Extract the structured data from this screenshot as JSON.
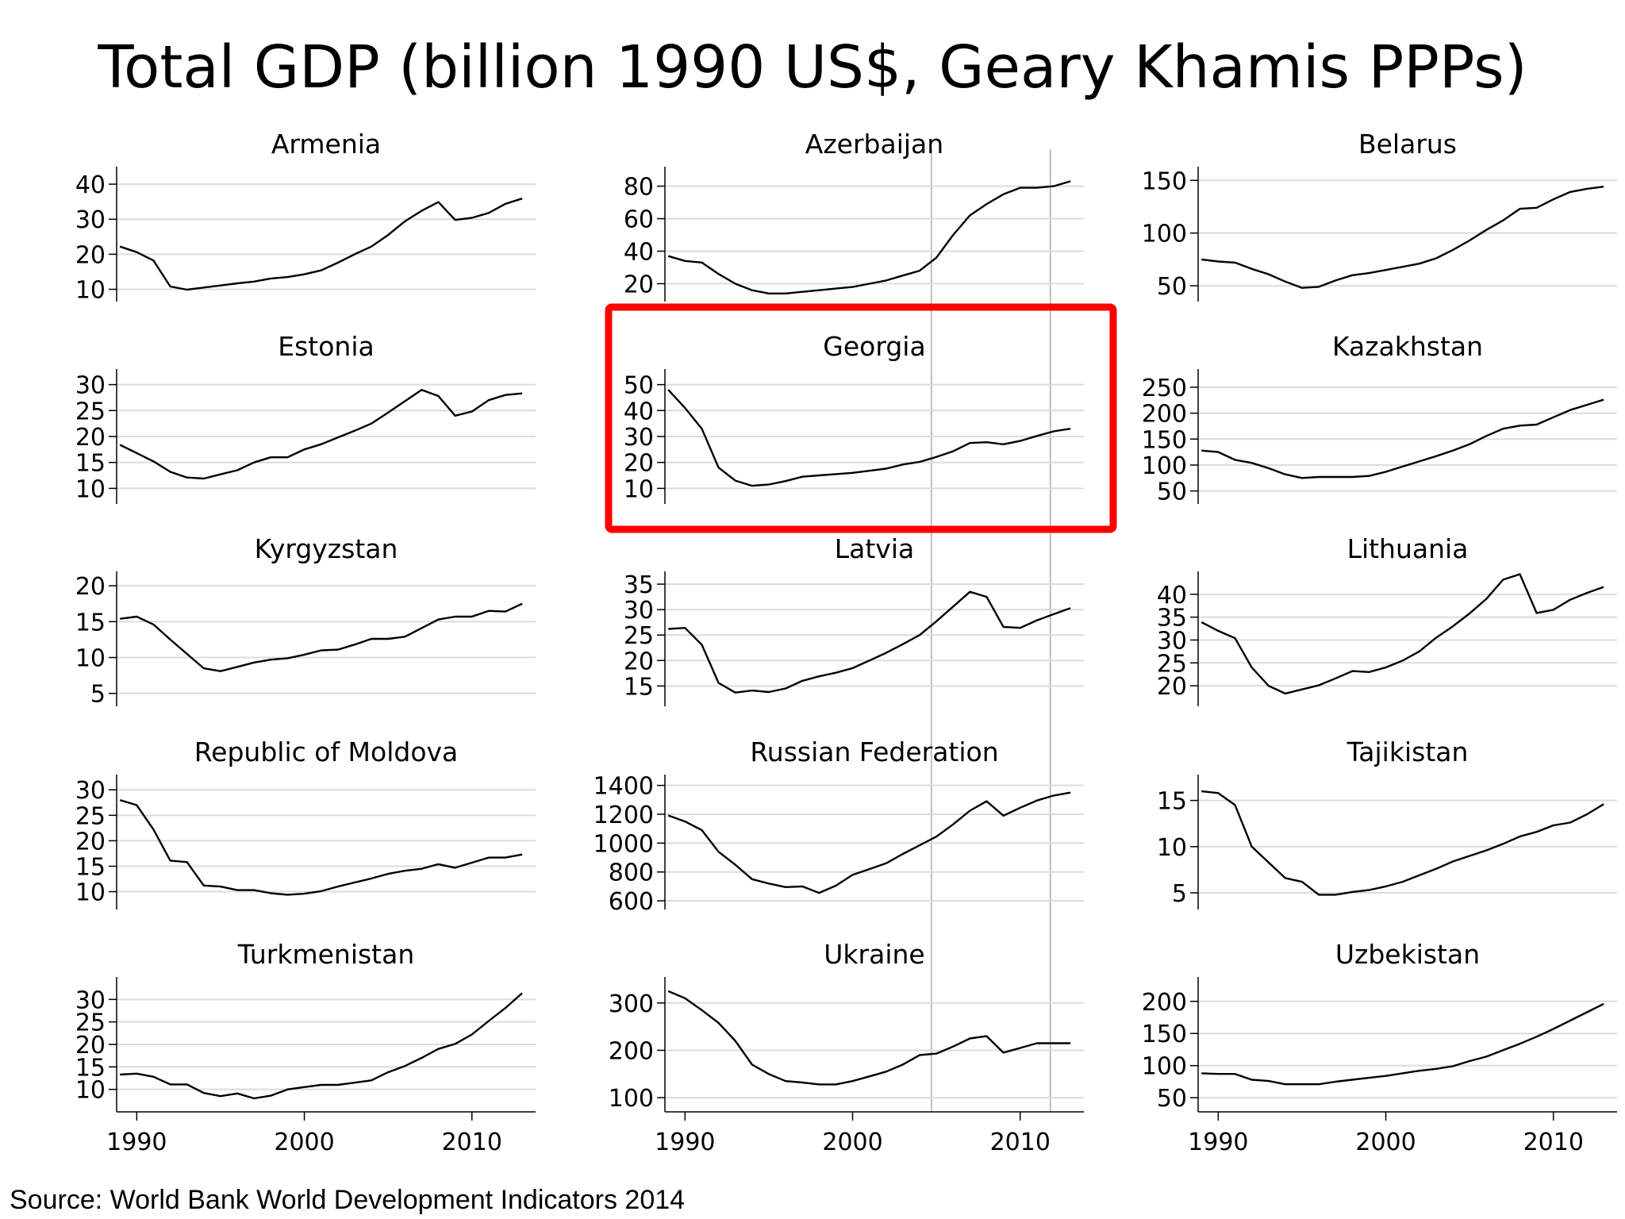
{
  "title": "Total GDP (billion 1990 US$, Geary Khamis PPPs)",
  "source": "Source: World Bank World Development Indicators 2014",
  "chart_data": {
    "type": "line",
    "x_axis": {
      "range": [
        1988.8,
        2013.8
      ],
      "ticks": [
        1990,
        2000,
        2010
      ]
    },
    "years": [
      1989,
      1990,
      1991,
      1992,
      1993,
      1994,
      1995,
      1996,
      1997,
      1998,
      1999,
      2000,
      2001,
      2002,
      2003,
      2004,
      2005,
      2006,
      2007,
      2008,
      2009,
      2010,
      2011,
      2012,
      2013
    ],
    "reference_lines_x": [
      2004.7,
      2011.8
    ],
    "highlighted_panel": "Georgia",
    "highlight_color": "#ff0000",
    "line_color": "#000000",
    "grid_color": "#dcdcdc",
    "panels": [
      {
        "name": "Armenia",
        "ylim": [
          6.5,
          45
        ],
        "yticks": [
          10,
          20,
          30,
          40
        ],
        "values": [
          22.2,
          20.6,
          18.2,
          10.8,
          9.9,
          10.5,
          11.1,
          11.7,
          12.2,
          13.1,
          13.5,
          14.3,
          15.4,
          17.6,
          20.0,
          22.2,
          25.5,
          29.4,
          32.4,
          34.9,
          29.8,
          30.4,
          31.8,
          34.4,
          35.9
        ]
      },
      {
        "name": "Azerbaijan",
        "ylim": [
          9,
          92
        ],
        "yticks": [
          20,
          40,
          60,
          80
        ],
        "values": [
          37,
          34,
          33,
          26,
          20,
          16,
          14,
          14,
          15,
          16,
          17,
          18,
          20,
          22,
          25,
          28,
          36,
          50,
          62,
          69,
          75,
          79,
          79,
          80,
          83
        ]
      },
      {
        "name": "Belarus",
        "ylim": [
          35,
          163
        ],
        "yticks": [
          50,
          100,
          150
        ],
        "values": [
          75,
          73,
          72,
          66,
          61,
          54,
          48,
          49,
          55,
          60,
          62,
          65,
          68,
          71,
          76,
          84,
          93,
          103,
          112,
          123,
          124,
          132,
          139,
          142,
          144
        ]
      },
      {
        "name": "Estonia",
        "ylim": [
          7,
          33
        ],
        "yticks": [
          10,
          15,
          20,
          25,
          30
        ],
        "values": [
          18.4,
          16.8,
          15.2,
          13.2,
          12.1,
          11.9,
          12.7,
          13.5,
          15.0,
          16.0,
          16.0,
          17.5,
          18.5,
          19.8,
          21.1,
          22.5,
          24.6,
          26.8,
          29.0,
          27.8,
          24.0,
          24.8,
          27.0,
          28.0,
          28.3
        ]
      },
      {
        "name": "Georgia",
        "ylim": [
          4,
          56
        ],
        "yticks": [
          10,
          20,
          30,
          40,
          50
        ],
        "values": [
          48,
          41,
          33,
          18,
          13,
          11,
          11.5,
          12.8,
          14.5,
          15,
          15.5,
          16,
          16.8,
          17.6,
          19.2,
          20.2,
          22.1,
          24.3,
          27.5,
          27.8,
          27,
          28.3,
          30.2,
          32,
          33
        ]
      },
      {
        "name": "Kazakhstan",
        "ylim": [
          25,
          285
        ],
        "yticks": [
          50,
          100,
          150,
          200,
          250
        ],
        "values": [
          128,
          125,
          110,
          104,
          94,
          82,
          75,
          77,
          77,
          77,
          79,
          87,
          97,
          107,
          117,
          128,
          140,
          156,
          170,
          176,
          178,
          192,
          206,
          216,
          226
        ]
      },
      {
        "name": "Kyrgyzstan",
        "ylim": [
          3.2,
          22
        ],
        "yticks": [
          5,
          10,
          15,
          20
        ],
        "values": [
          15.4,
          15.7,
          14.6,
          12.5,
          10.5,
          8.5,
          8.1,
          8.7,
          9.3,
          9.7,
          9.9,
          10.4,
          11.0,
          11.1,
          11.8,
          12.6,
          12.6,
          12.9,
          14.1,
          15.3,
          15.7,
          15.7,
          16.5,
          16.4,
          17.5
        ]
      },
      {
        "name": "Latvia",
        "ylim": [
          11,
          37.5
        ],
        "yticks": [
          15,
          20,
          25,
          30,
          35
        ],
        "values": [
          26.2,
          26.4,
          23.1,
          15.6,
          13.7,
          14.1,
          13.8,
          14.5,
          16.0,
          16.9,
          17.6,
          18.5,
          20.0,
          21.5,
          23.2,
          25.0,
          27.7,
          30.6,
          33.5,
          32.5,
          26.6,
          26.4,
          27.9,
          29.1,
          30.3
        ]
      },
      {
        "name": "Lithuania",
        "ylim": [
          15.5,
          45
        ],
        "yticks": [
          20,
          25,
          30,
          35,
          40
        ],
        "values": [
          33.9,
          32.0,
          30.4,
          24.0,
          20.0,
          18.3,
          19.2,
          20.1,
          21.6,
          23.2,
          23.0,
          24.0,
          25.5,
          27.5,
          30.5,
          33.0,
          35.8,
          39.0,
          43.2,
          44.4,
          35.9,
          36.6,
          38.8,
          40.3,
          41.6
        ]
      },
      {
        "name": "Republic of Moldova",
        "ylim": [
          6.5,
          33
        ],
        "yticks": [
          10,
          15,
          20,
          25,
          30
        ],
        "values": [
          28.0,
          27.0,
          22.2,
          16.1,
          15.8,
          11.2,
          11.0,
          10.3,
          10.3,
          9.7,
          9.4,
          9.6,
          10.1,
          11.0,
          11.8,
          12.6,
          13.5,
          14.1,
          14.5,
          15.4,
          14.7,
          15.7,
          16.7,
          16.7,
          17.3
        ]
      },
      {
        "name": "Russian Federation",
        "ylim": [
          540,
          1475
        ],
        "yticks": [
          600,
          800,
          1000,
          1200,
          1400
        ],
        "values": [
          1192,
          1150,
          1090,
          940,
          850,
          750,
          720,
          695,
          700,
          655,
          705,
          780,
          820,
          860,
          925,
          985,
          1045,
          1130,
          1225,
          1290,
          1190,
          1245,
          1295,
          1330,
          1350
        ]
      },
      {
        "name": "Tajikistan",
        "ylim": [
          3.2,
          17.8
        ],
        "yticks": [
          5,
          10,
          15
        ],
        "values": [
          16.0,
          15.8,
          14.5,
          10.0,
          8.3,
          6.6,
          6.2,
          4.8,
          4.8,
          5.1,
          5.3,
          5.7,
          6.2,
          6.9,
          7.6,
          8.4,
          9.0,
          9.6,
          10.3,
          11.1,
          11.6,
          12.3,
          12.6,
          13.5,
          14.6
        ]
      },
      {
        "name": "Turkmenistan",
        "ylim": [
          5,
          35
        ],
        "yticks": [
          10,
          15,
          20,
          25,
          30
        ],
        "values": [
          13.3,
          13.5,
          12.8,
          11.1,
          11.1,
          9.2,
          8.5,
          9.1,
          8.0,
          8.6,
          10.0,
          10.5,
          11.0,
          11.0,
          11.5,
          12.0,
          13.8,
          15.2,
          17.0,
          19.0,
          20.1,
          22.2,
          25.2,
          28.1,
          31.4
        ]
      },
      {
        "name": "Ukraine",
        "ylim": [
          70,
          355
        ],
        "yticks": [
          100,
          200,
          300
        ],
        "values": [
          325,
          310,
          285,
          258,
          220,
          170,
          150,
          135,
          132,
          128,
          128,
          135,
          145,
          155,
          170,
          190,
          193,
          208,
          225,
          230,
          195,
          205,
          215,
          215,
          215
        ]
      },
      {
        "name": "Uzbekistan",
        "ylim": [
          28,
          238
        ],
        "yticks": [
          50,
          100,
          150,
          200
        ],
        "values": [
          88,
          87,
          87,
          78,
          76,
          71,
          71,
          71,
          75,
          78,
          81,
          84,
          88,
          92,
          95,
          99,
          107,
          114,
          124,
          134,
          145,
          157,
          170,
          183,
          196
        ]
      }
    ]
  }
}
